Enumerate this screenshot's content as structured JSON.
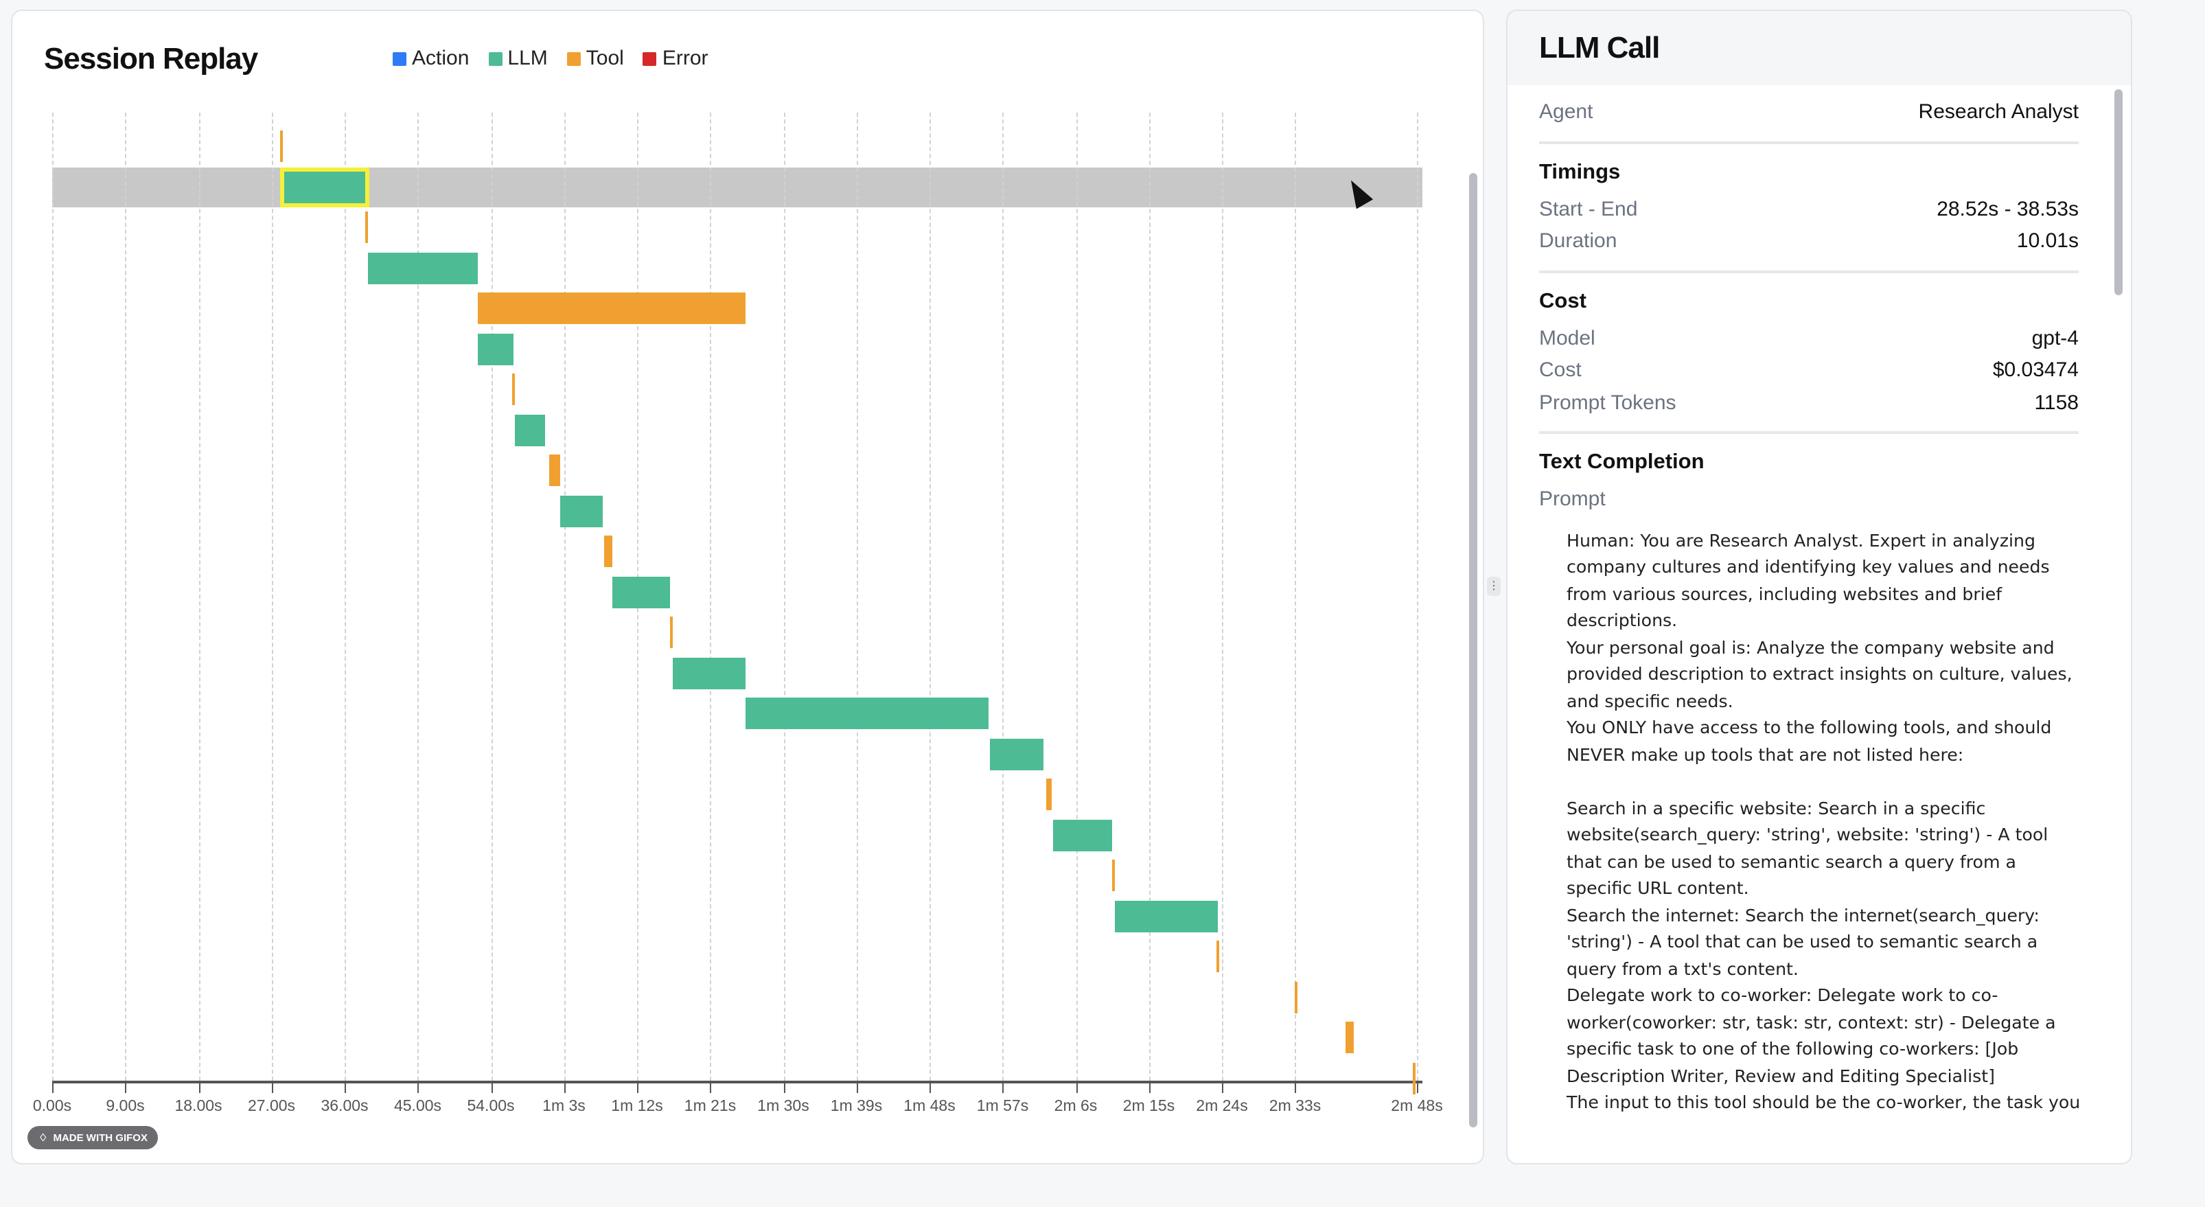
{
  "left_panel": {
    "title": "Session Replay",
    "badge": "MADE WITH GIFOX"
  },
  "legend": [
    {
      "label": "Action",
      "color": "#2f7bf5"
    },
    {
      "label": "LLM",
      "color": "#4dbb94"
    },
    {
      "label": "Tool",
      "color": "#f0a030"
    },
    {
      "label": "Error",
      "color": "#d62828"
    }
  ],
  "colors": {
    "llm": "#4dbb94",
    "tool": "#f0a030",
    "highlight": "#c8c8c8",
    "selection": "#f4f03a"
  },
  "chart_data": {
    "type": "gantt",
    "xlim": [
      0,
      168
    ],
    "x_unit": "seconds",
    "ticks": [
      {
        "v": 0,
        "label": "0.00s"
      },
      {
        "v": 9,
        "label": "9.00s"
      },
      {
        "v": 18,
        "label": "18.00s"
      },
      {
        "v": 27,
        "label": "27.00s"
      },
      {
        "v": 36,
        "label": "36.00s"
      },
      {
        "v": 45,
        "label": "45.00s"
      },
      {
        "v": 54,
        "label": "54.00s"
      },
      {
        "v": 63,
        "label": "1m 3s"
      },
      {
        "v": 72,
        "label": "1m 12s"
      },
      {
        "v": 81,
        "label": "1m 21s"
      },
      {
        "v": 90,
        "label": "1m 30s"
      },
      {
        "v": 99,
        "label": "1m 39s"
      },
      {
        "v": 108,
        "label": "1m 48s"
      },
      {
        "v": 117,
        "label": "1m 57s"
      },
      {
        "v": 126,
        "label": "2m 6s"
      },
      {
        "v": 135,
        "label": "2m 15s"
      },
      {
        "v": 144,
        "label": "2m 24s"
      },
      {
        "v": 153,
        "label": "2m 33s"
      },
      {
        "v": 168,
        "label": "2m 48s"
      }
    ],
    "selected_row": 1,
    "events": [
      {
        "type": "tool",
        "start": 28.1,
        "end": 28.4
      },
      {
        "type": "llm",
        "start": 28.52,
        "end": 38.53
      },
      {
        "type": "tool",
        "start": 38.5,
        "end": 38.8
      },
      {
        "type": "llm",
        "start": 38.9,
        "end": 52.4
      },
      {
        "type": "tool",
        "start": 52.4,
        "end": 85.3
      },
      {
        "type": "llm",
        "start": 52.4,
        "end": 56.8
      },
      {
        "type": "tool",
        "start": 56.7,
        "end": 57.0
      },
      {
        "type": "llm",
        "start": 57.0,
        "end": 60.7
      },
      {
        "type": "tool",
        "start": 61.2,
        "end": 62.5
      },
      {
        "type": "llm",
        "start": 62.5,
        "end": 67.8
      },
      {
        "type": "tool",
        "start": 67.9,
        "end": 69.0
      },
      {
        "type": "llm",
        "start": 69.0,
        "end": 76.0
      },
      {
        "type": "tool",
        "start": 76.0,
        "end": 76.3
      },
      {
        "type": "llm",
        "start": 76.4,
        "end": 85.3
      },
      {
        "type": "llm",
        "start": 85.3,
        "end": 115.3
      },
      {
        "type": "llm",
        "start": 115.4,
        "end": 122.1
      },
      {
        "type": "tool",
        "start": 122.4,
        "end": 123.1
      },
      {
        "type": "llm",
        "start": 123.2,
        "end": 130.5
      },
      {
        "type": "tool",
        "start": 130.4,
        "end": 130.7
      },
      {
        "type": "llm",
        "start": 130.8,
        "end": 143.5
      },
      {
        "type": "tool",
        "start": 143.4,
        "end": 143.7
      },
      {
        "type": "tool",
        "start": 152.9,
        "end": 153.2
      },
      {
        "type": "tool",
        "start": 159.2,
        "end": 160.2
      },
      {
        "type": "tool",
        "start": 167.5,
        "end": 167.8
      }
    ]
  },
  "details": {
    "title": "LLM Call",
    "agent_label": "Agent",
    "agent": "Research Analyst",
    "timings_title": "Timings",
    "start_end_label": "Start - End",
    "start_end": "28.52s - 38.53s",
    "duration_label": "Duration",
    "duration": "10.01s",
    "cost_title": "Cost",
    "model_label": "Model",
    "model": "gpt-4",
    "cost_label": "Cost",
    "cost": "$0.03474",
    "tokens_label": "Prompt Tokens",
    "tokens": "1158",
    "completion_title": "Text Completion",
    "prompt_label": "Prompt",
    "prompt_lines": [
      "Human: You are Research Analyst. Expert in analyzing",
      "company cultures and identifying key values and needs",
      "from various sources, including websites and brief",
      "descriptions.",
      "Your personal goal is: Analyze the company website and",
      "provided description to extract insights on culture, values,",
      "and specific needs.",
      "You ONLY have access to the following tools, and should",
      "NEVER make up tools that are not listed here:",
      "",
      "Search in a specific website: Search in a specific",
      "website(search_query: 'string', website: 'string') - A tool",
      "that can be used to semantic search a query from a",
      "specific URL content.",
      "Search the internet: Search the internet(search_query:",
      "'string') - A tool that can be used to semantic search a",
      "query from a txt's content.",
      "Delegate work to co-worker: Delegate work to co-",
      "worker(coworker: str, task: str, context: str) - Delegate a",
      "specific task to one of the following co-workers: [Job",
      "Description Writer, Review and Editing Specialist]",
      "The input to this tool should be the co-worker, the task you"
    ]
  }
}
